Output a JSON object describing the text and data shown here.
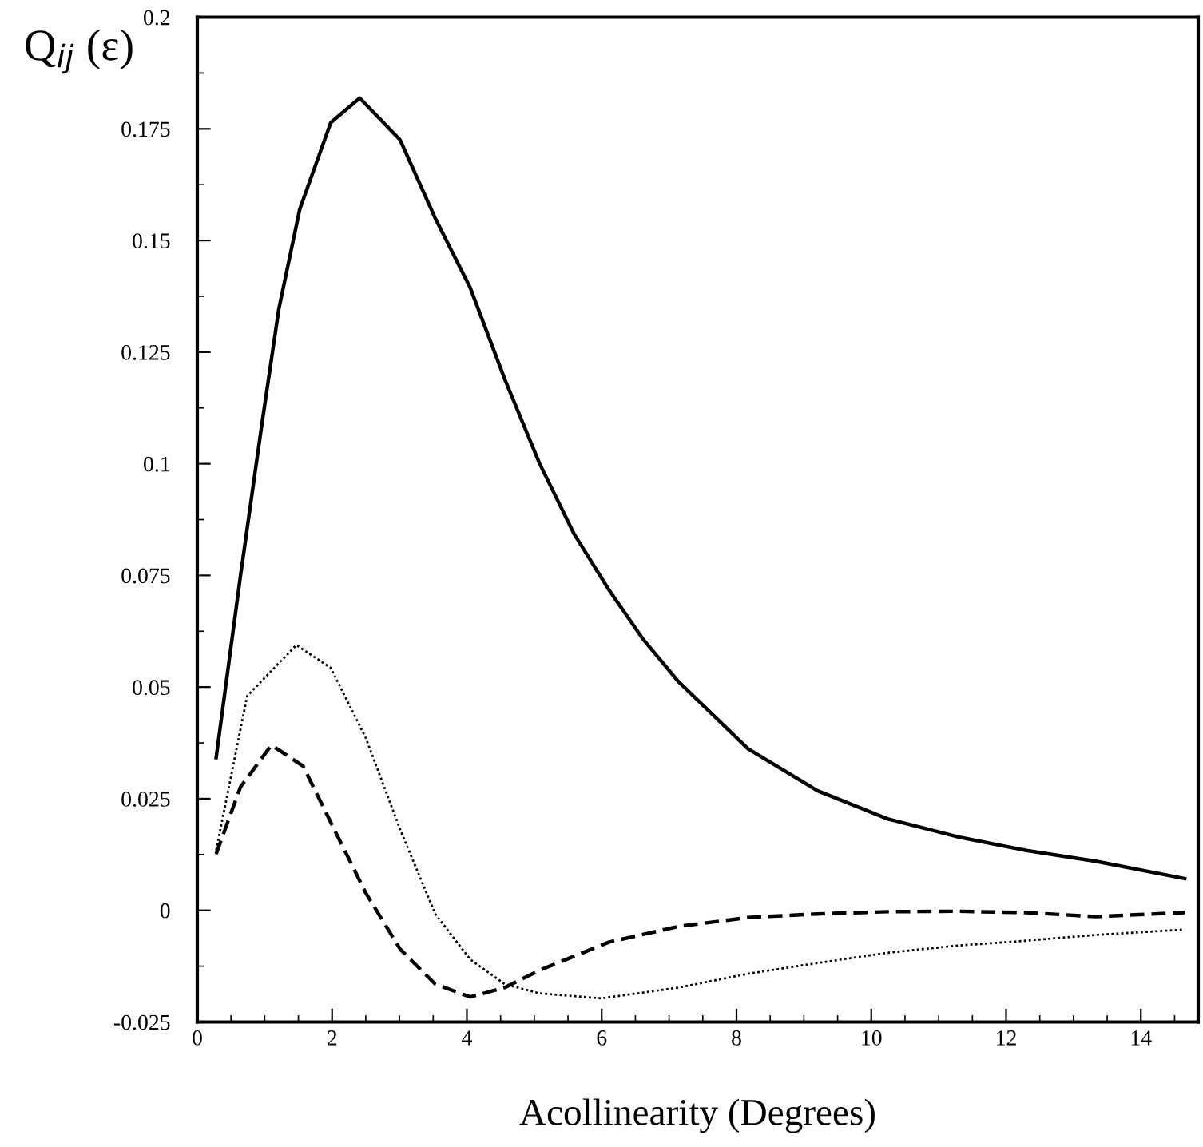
{
  "chart_data": {
    "type": "line",
    "xlabel": "Acollinearity (Degrees)",
    "ylabel": "Q$_{ij}$ (ε)",
    "xlim": [
      0,
      14.85
    ],
    "ylim": [
      -0.025,
      0.2
    ],
    "xticks": [
      0,
      2,
      4,
      6,
      8,
      10,
      12,
      14
    ],
    "yticks": [
      -0.025,
      0,
      0.025,
      0.05,
      0.075,
      0.1,
      0.125,
      0.15,
      0.175,
      0.2
    ],
    "grid": false,
    "legend": false,
    "marker": "none",
    "series": [
      {
        "color": "#000000",
        "line_style": "solid",
        "x": [
          0.28,
          0.64,
          0.95,
          1.21,
          1.52,
          1.98,
          2.41,
          3.01,
          3.53,
          4.05,
          4.56,
          5.08,
          5.59,
          6.11,
          6.62,
          7.14,
          8.17,
          9.2,
          10.24,
          11.27,
          12.3,
          13.33,
          14.65
        ],
        "values": [
          0.0342,
          0.0748,
          0.108,
          0.1347,
          0.157,
          0.1764,
          0.1819,
          0.1725,
          0.155,
          0.1394,
          0.119,
          0.1,
          0.0843,
          0.0717,
          0.0606,
          0.0512,
          0.0362,
          0.0268,
          0.0205,
          0.0165,
          0.0134,
          0.011,
          0.0071
        ]
      },
      {
        "color": "#000000",
        "line_style": "dotted",
        "x": [
          0.28,
          0.74,
          1.47,
          1.98,
          2.5,
          3.01,
          3.53,
          4.05,
          4.56,
          5.08,
          6.0,
          7.14,
          8.17,
          9.2,
          10.24,
          11.27,
          12.3,
          13.33,
          14.65
        ],
        "values": [
          0.0134,
          0.048,
          0.0594,
          0.0543,
          0.0386,
          0.0181,
          -0.0008,
          -0.011,
          -0.0165,
          -0.0186,
          -0.0197,
          -0.0173,
          -0.0142,
          -0.0118,
          -0.0095,
          -0.0079,
          -0.0068,
          -0.0055,
          -0.0043
        ]
      },
      {
        "color": "#000000",
        "line_style": "dashed",
        "x": [
          0.28,
          0.64,
          1.1,
          1.57,
          1.98,
          2.5,
          3.01,
          3.53,
          4.05,
          4.56,
          5.08,
          6.11,
          7.14,
          8.17,
          9.2,
          10.24,
          11.27,
          12.3,
          13.33,
          14.65
        ],
        "values": [
          0.0126,
          0.0276,
          0.037,
          0.0323,
          0.0197,
          0.0039,
          -0.0087,
          -0.0165,
          -0.0194,
          -0.0173,
          -0.0134,
          -0.0071,
          -0.0036,
          -0.0016,
          -0.0008,
          -0.0003,
          -0.0002,
          -0.0005,
          -0.0014,
          -0.0005
        ]
      }
    ]
  }
}
